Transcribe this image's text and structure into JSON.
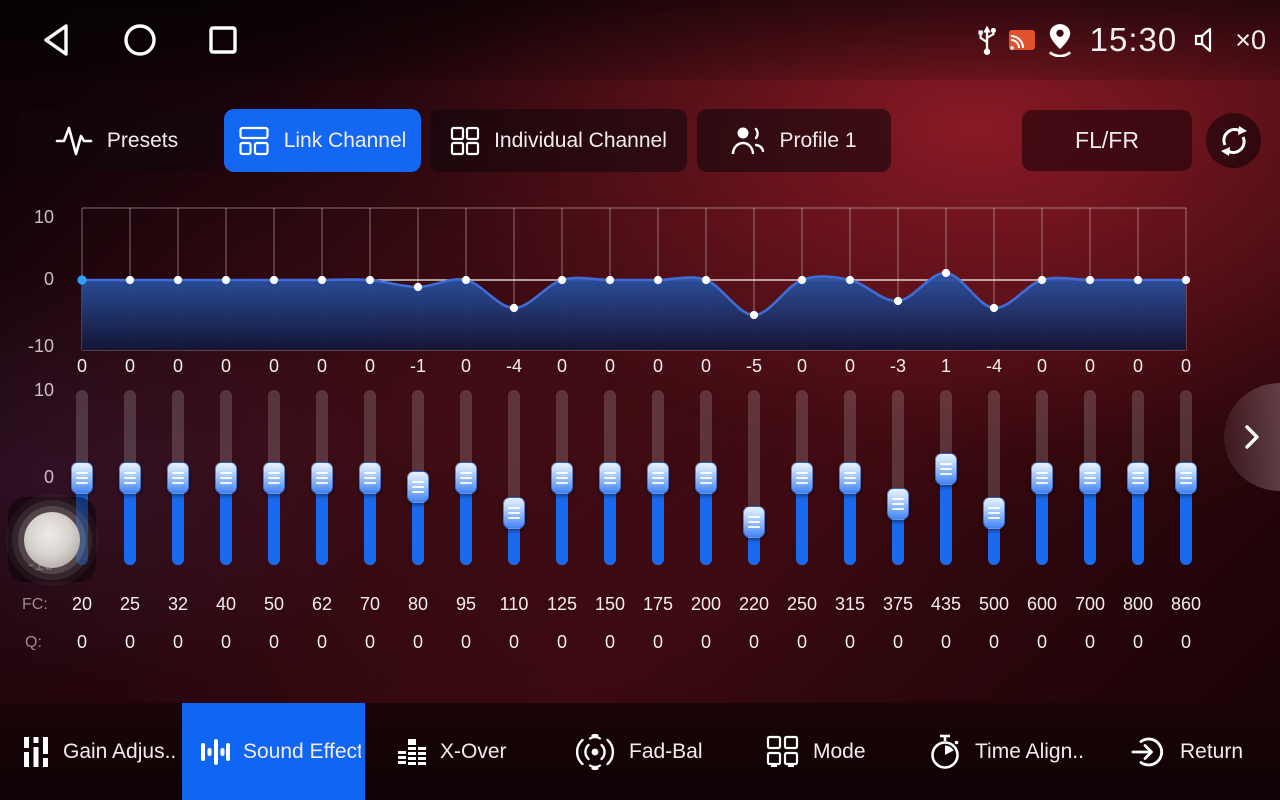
{
  "status_bar": {
    "time": "15:30",
    "volume_level": "×0"
  },
  "tabs": {
    "presets": "Presets",
    "link_channel": "Link Channel",
    "individual_channel": "Individual Channel",
    "profile": "Profile 1",
    "channel_select": "FL/FR"
  },
  "eq": {
    "graph_scale_labels": [
      "10",
      "0",
      "-10"
    ],
    "slider_scale_labels": [
      "10",
      "0",
      "-10"
    ],
    "row_labels": {
      "fc": "FC:",
      "q": "Q:"
    },
    "bands": [
      {
        "fc": "20",
        "gain": 0,
        "q": "0"
      },
      {
        "fc": "25",
        "gain": 0,
        "q": "0"
      },
      {
        "fc": "32",
        "gain": 0,
        "q": "0"
      },
      {
        "fc": "40",
        "gain": 0,
        "q": "0"
      },
      {
        "fc": "50",
        "gain": 0,
        "q": "0"
      },
      {
        "fc": "62",
        "gain": 0,
        "q": "0"
      },
      {
        "fc": "70",
        "gain": 0,
        "q": "0"
      },
      {
        "fc": "80",
        "gain": -1,
        "q": "0"
      },
      {
        "fc": "95",
        "gain": 0,
        "q": "0"
      },
      {
        "fc": "110",
        "gain": -4,
        "q": "0"
      },
      {
        "fc": "125",
        "gain": 0,
        "q": "0"
      },
      {
        "fc": "150",
        "gain": 0,
        "q": "0"
      },
      {
        "fc": "175",
        "gain": 0,
        "q": "0"
      },
      {
        "fc": "200",
        "gain": 0,
        "q": "0"
      },
      {
        "fc": "220",
        "gain": -5,
        "q": "0"
      },
      {
        "fc": "250",
        "gain": 0,
        "q": "0"
      },
      {
        "fc": "315",
        "gain": 0,
        "q": "0"
      },
      {
        "fc": "375",
        "gain": -3,
        "q": "0"
      },
      {
        "fc": "435",
        "gain": 1,
        "q": "0"
      },
      {
        "fc": "500",
        "gain": -4,
        "q": "0"
      },
      {
        "fc": "600",
        "gain": 0,
        "q": "0"
      },
      {
        "fc": "700",
        "gain": 0,
        "q": "0"
      },
      {
        "fc": "800",
        "gain": 0,
        "q": "0"
      },
      {
        "fc": "860",
        "gain": 0,
        "q": "0"
      }
    ]
  },
  "chart_data": {
    "type": "line",
    "x": [
      "20",
      "25",
      "32",
      "40",
      "50",
      "62",
      "70",
      "80",
      "95",
      "110",
      "125",
      "150",
      "175",
      "200",
      "220",
      "250",
      "315",
      "375",
      "435",
      "500",
      "600",
      "700",
      "800",
      "860"
    ],
    "values": [
      0,
      0,
      0,
      0,
      0,
      0,
      0,
      -1,
      0,
      -4,
      0,
      0,
      0,
      0,
      -5,
      0,
      0,
      -3,
      1,
      -4,
      0,
      0,
      0,
      0
    ],
    "ylim": [
      -10,
      10
    ],
    "ytick_labels": [
      "10",
      "0",
      "-10"
    ],
    "grid": true
  },
  "bottom_nav": {
    "items": [
      {
        "label": "Gain Adjus..",
        "active": false
      },
      {
        "label": "Sound Effect",
        "active": true
      },
      {
        "label": "X-Over",
        "active": false
      },
      {
        "label": "Fad-Bal",
        "active": false
      },
      {
        "label": "Mode",
        "active": false
      },
      {
        "label": "Time Align..",
        "active": false
      },
      {
        "label": "Return",
        "active": false
      }
    ]
  },
  "colors": {
    "accent_blue": "#1467f2",
    "slider_blue": "#1a6af0",
    "selected_point_blue": "#2da0f8",
    "cast_orange": "#e0512d"
  }
}
